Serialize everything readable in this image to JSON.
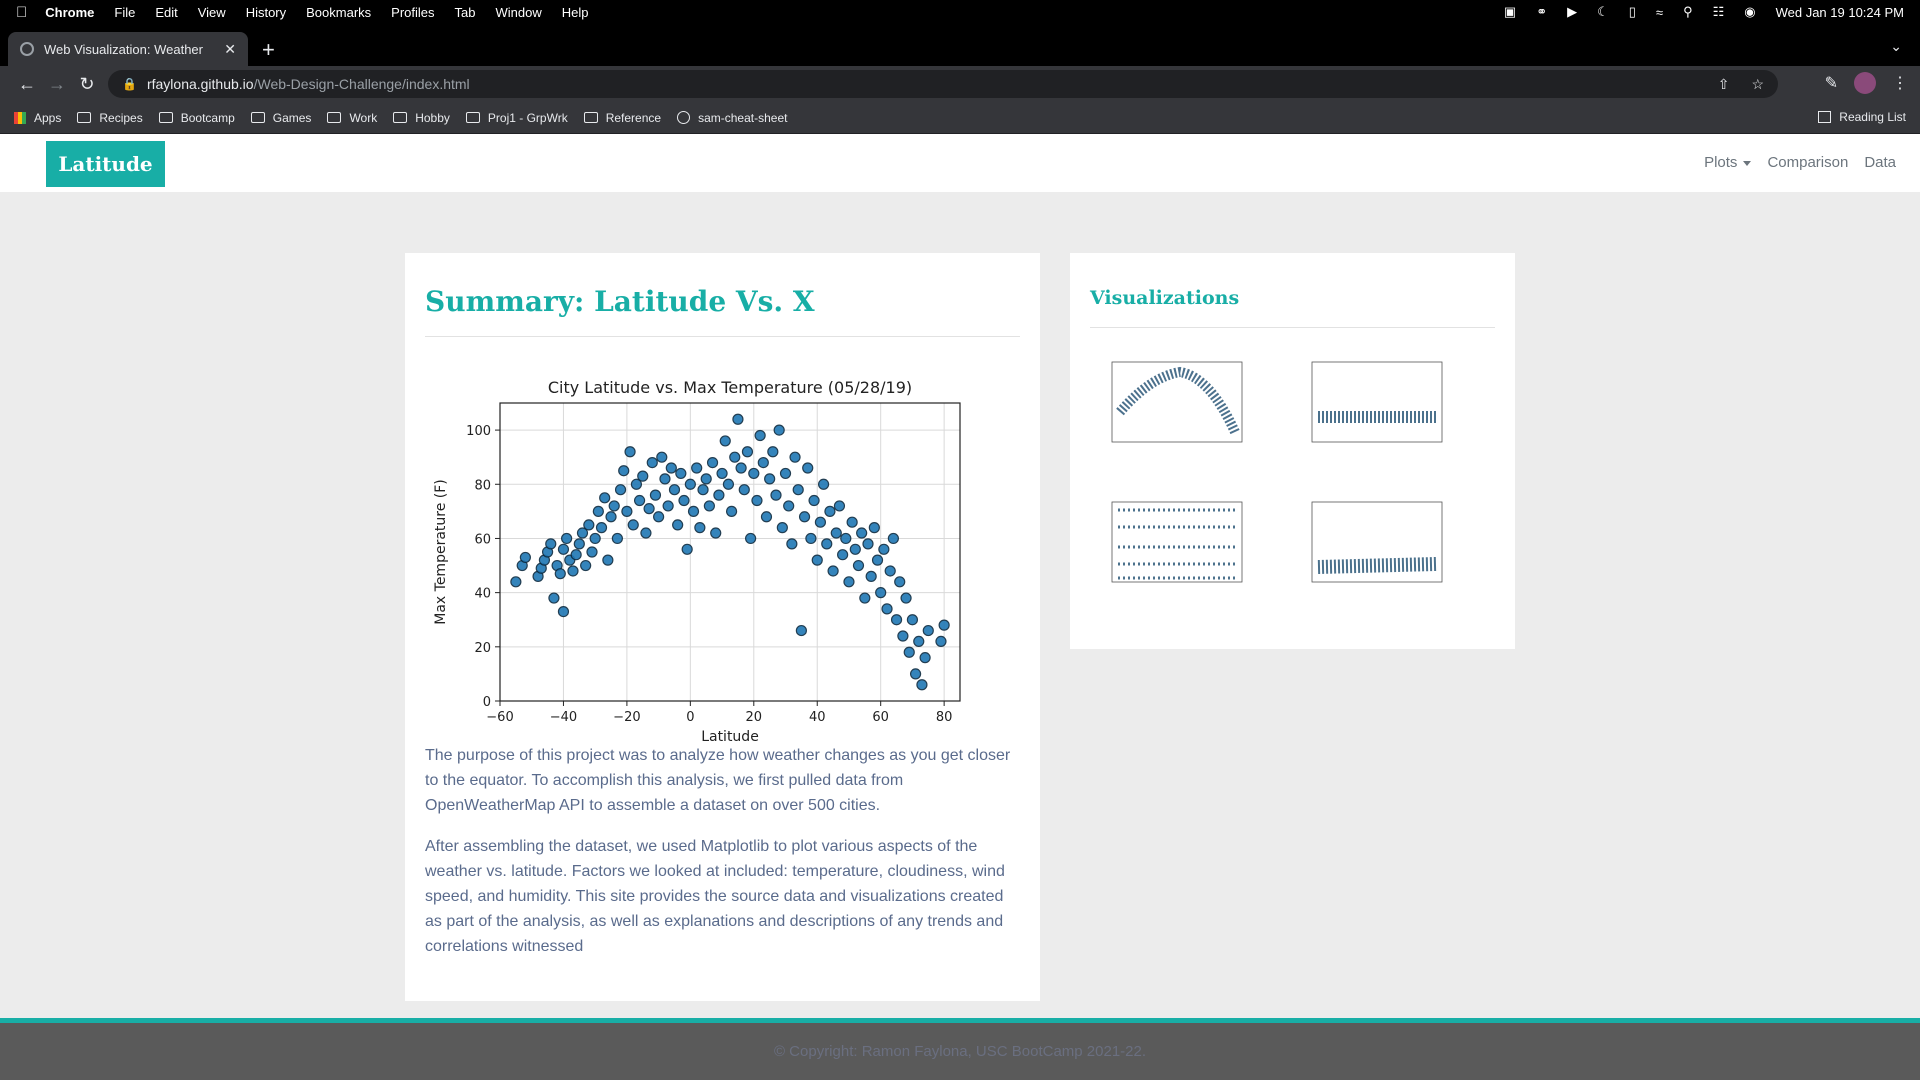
{
  "menubar": {
    "app": "Chrome",
    "items": [
      "File",
      "Edit",
      "View",
      "History",
      "Bookmarks",
      "Profiles",
      "Tab",
      "Window",
      "Help"
    ],
    "datetime": "Wed Jan 19  10:24 PM"
  },
  "tab": {
    "title": "Web Visualization: Weather"
  },
  "address": {
    "host": "rfaylona.github.io",
    "path": "/Web-Design-Challenge/index.html"
  },
  "bookmarks": {
    "items": [
      "Apps",
      "Recipes",
      "Bootcamp",
      "Games",
      "Work",
      "Hobby",
      "Proj1 - GrpWrk",
      "Reference",
      "sam-cheat-sheet"
    ],
    "reading_list": "Reading List"
  },
  "navbar": {
    "brand": "Latitude",
    "links": [
      "Plots",
      "Comparison",
      "Data"
    ]
  },
  "main": {
    "title": "Summary: Latitude Vs. X",
    "paragraph1": "The purpose of this project was to analyze how weather changes as you get closer to the equator. To accomplish this analysis, we first pulled data from OpenWeatherMap API to assemble a dataset on over 500 cities.",
    "paragraph2": "After assembling the dataset, we used Matplotlib to plot various aspects of the weather vs. latitude. Factors we looked at included: temperature, cloudiness, wind speed, and humidity. This site provides the source data and visualizations created as part of the analysis, as well as explanations and descriptions of any trends and correlations witnessed"
  },
  "side": {
    "title": "Visualizations"
  },
  "footer": {
    "copyright": "© Copyright: Ramon Faylona, USC BootCamp 2021-22."
  },
  "colors": {
    "accent": "#18aea6",
    "point_fill": "#1f77b4",
    "point_edge": "#0b2a40"
  },
  "chart_data": {
    "type": "scatter",
    "title": "City Latitude vs. Max Temperature (05/28/19)",
    "xlabel": "Latitude",
    "ylabel": "Max Temperature (F)",
    "xlim": [
      -60,
      85
    ],
    "ylim": [
      0,
      110
    ],
    "xticks": [
      -60,
      -40,
      -20,
      0,
      20,
      40,
      60,
      80
    ],
    "yticks": [
      0,
      20,
      40,
      60,
      80,
      100
    ],
    "grid": true,
    "points": [
      [
        -55,
        44
      ],
      [
        -53,
        50
      ],
      [
        -52,
        53
      ],
      [
        -48,
        46
      ],
      [
        -47,
        49
      ],
      [
        -46,
        52
      ],
      [
        -45,
        55
      ],
      [
        -44,
        58
      ],
      [
        -43,
        38
      ],
      [
        -42,
        50
      ],
      [
        -41,
        47
      ],
      [
        -40,
        33
      ],
      [
        -40,
        56
      ],
      [
        -39,
        60
      ],
      [
        -38,
        52
      ],
      [
        -37,
        48
      ],
      [
        -36,
        54
      ],
      [
        -35,
        58
      ],
      [
        -34,
        62
      ],
      [
        -33,
        50
      ],
      [
        -32,
        65
      ],
      [
        -31,
        55
      ],
      [
        -30,
        60
      ],
      [
        -29,
        70
      ],
      [
        -28,
        64
      ],
      [
        -27,
        75
      ],
      [
        -26,
        52
      ],
      [
        -25,
        68
      ],
      [
        -24,
        72
      ],
      [
        -23,
        60
      ],
      [
        -22,
        78
      ],
      [
        -21,
        85
      ],
      [
        -20,
        70
      ],
      [
        -19,
        92
      ],
      [
        -18,
        65
      ],
      [
        -17,
        80
      ],
      [
        -16,
        74
      ],
      [
        -15,
        83
      ],
      [
        -14,
        62
      ],
      [
        -13,
        71
      ],
      [
        -12,
        88
      ],
      [
        -11,
        76
      ],
      [
        -10,
        68
      ],
      [
        -9,
        90
      ],
      [
        -8,
        82
      ],
      [
        -7,
        72
      ],
      [
        -6,
        86
      ],
      [
        -5,
        78
      ],
      [
        -4,
        65
      ],
      [
        -3,
        84
      ],
      [
        -2,
        74
      ],
      [
        -1,
        56
      ],
      [
        0,
        80
      ],
      [
        1,
        70
      ],
      [
        2,
        86
      ],
      [
        3,
        64
      ],
      [
        4,
        78
      ],
      [
        5,
        82
      ],
      [
        6,
        72
      ],
      [
        7,
        88
      ],
      [
        8,
        62
      ],
      [
        9,
        76
      ],
      [
        10,
        84
      ],
      [
        11,
        96
      ],
      [
        12,
        80
      ],
      [
        13,
        70
      ],
      [
        14,
        90
      ],
      [
        15,
        104
      ],
      [
        16,
        86
      ],
      [
        17,
        78
      ],
      [
        18,
        92
      ],
      [
        19,
        60
      ],
      [
        20,
        84
      ],
      [
        21,
        74
      ],
      [
        22,
        98
      ],
      [
        23,
        88
      ],
      [
        24,
        68
      ],
      [
        25,
        82
      ],
      [
        26,
        92
      ],
      [
        27,
        76
      ],
      [
        28,
        100
      ],
      [
        29,
        64
      ],
      [
        30,
        84
      ],
      [
        31,
        72
      ],
      [
        32,
        58
      ],
      [
        33,
        90
      ],
      [
        34,
        78
      ],
      [
        35,
        26
      ],
      [
        36,
        68
      ],
      [
        37,
        86
      ],
      [
        38,
        60
      ],
      [
        39,
        74
      ],
      [
        40,
        52
      ],
      [
        41,
        66
      ],
      [
        42,
        80
      ],
      [
        43,
        58
      ],
      [
        44,
        70
      ],
      [
        45,
        48
      ],
      [
        46,
        62
      ],
      [
        47,
        72
      ],
      [
        48,
        54
      ],
      [
        49,
        60
      ],
      [
        50,
        44
      ],
      [
        51,
        66
      ],
      [
        52,
        56
      ],
      [
        53,
        50
      ],
      [
        54,
        62
      ],
      [
        55,
        38
      ],
      [
        56,
        58
      ],
      [
        57,
        46
      ],
      [
        58,
        64
      ],
      [
        59,
        52
      ],
      [
        60,
        40
      ],
      [
        61,
        56
      ],
      [
        62,
        34
      ],
      [
        63,
        48
      ],
      [
        64,
        60
      ],
      [
        65,
        30
      ],
      [
        66,
        44
      ],
      [
        67,
        24
      ],
      [
        68,
        38
      ],
      [
        69,
        18
      ],
      [
        70,
        30
      ],
      [
        71,
        10
      ],
      [
        72,
        22
      ],
      [
        73,
        6
      ],
      [
        74,
        16
      ],
      [
        75,
        26
      ],
      [
        80,
        28
      ],
      [
        79,
        22
      ]
    ]
  }
}
